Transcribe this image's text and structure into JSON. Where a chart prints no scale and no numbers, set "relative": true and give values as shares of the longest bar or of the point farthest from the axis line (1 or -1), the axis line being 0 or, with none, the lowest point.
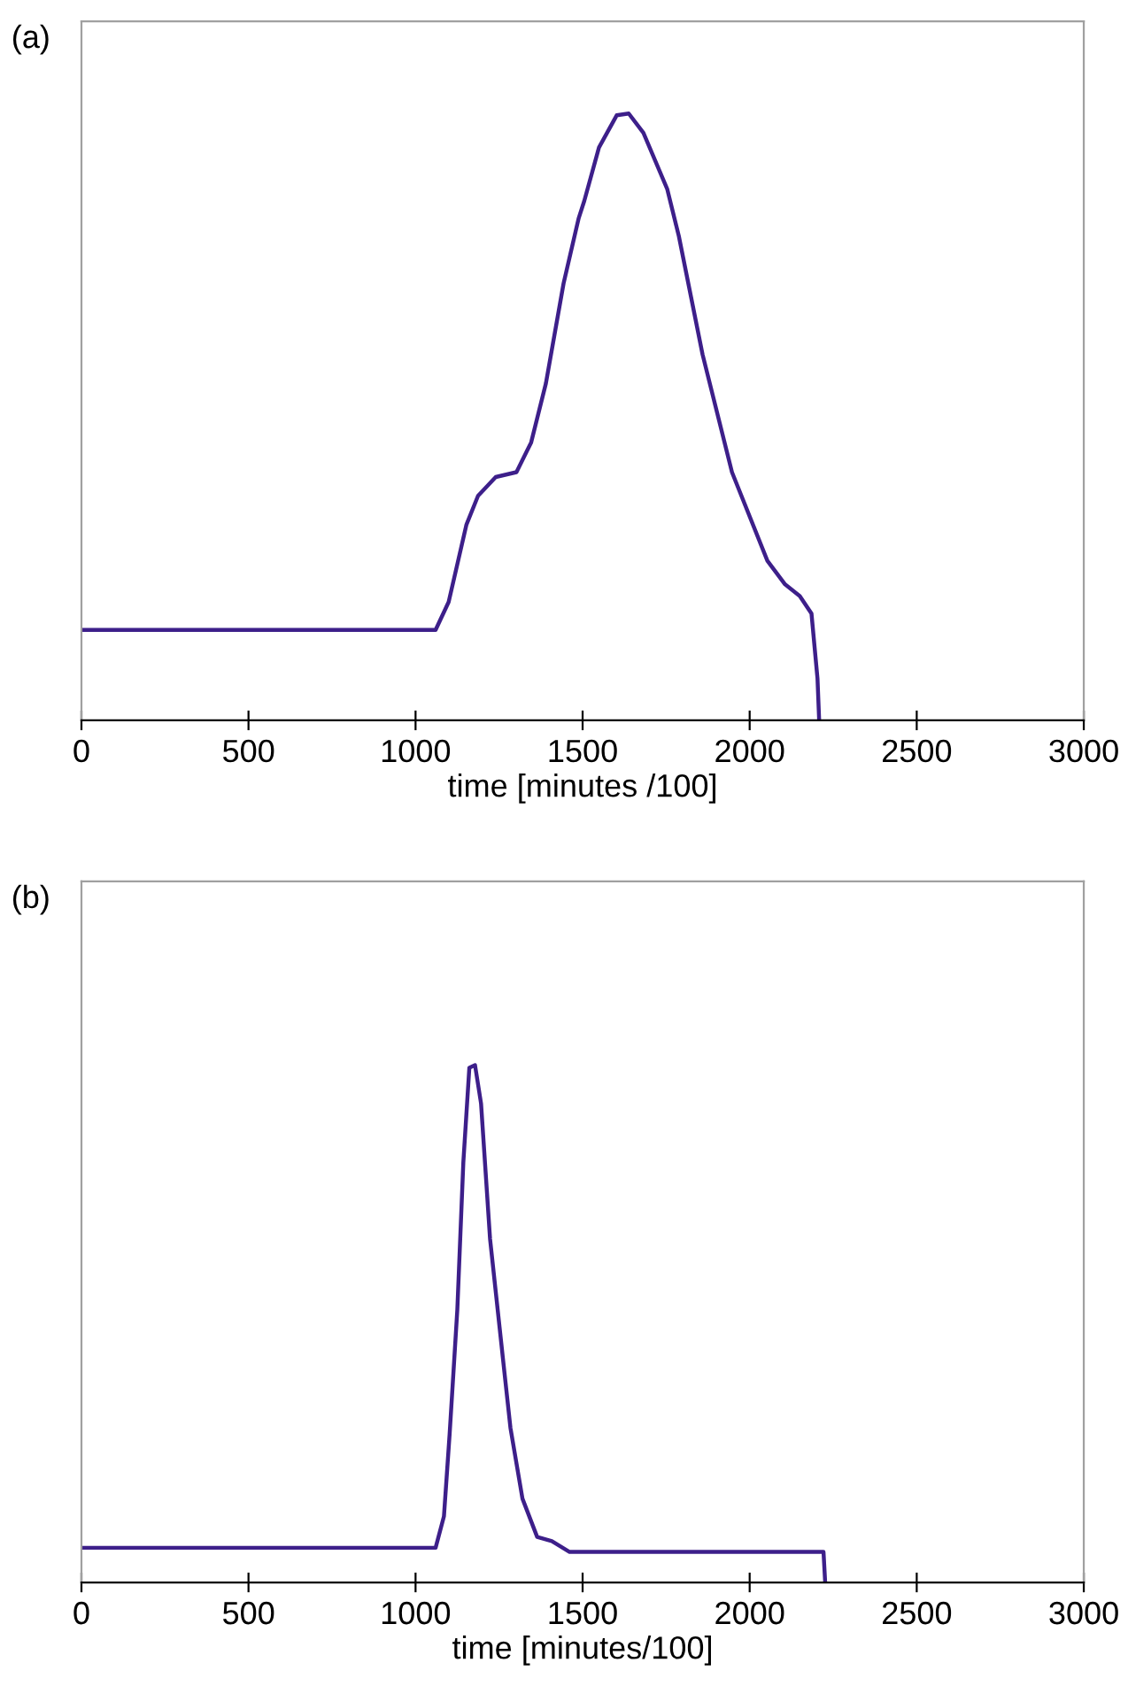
{
  "chart_data": [
    {
      "type": "line",
      "title": "(a)",
      "xlabel": "time [minutes /100]",
      "relative": true,
      "xlim": [
        0,
        3000
      ],
      "xticks": [
        0,
        500,
        1000,
        1500,
        2000,
        2500,
        3000
      ],
      "tick_labels": "x",
      "grid": false,
      "legend": false,
      "series": [
        {
          "color": "#3d1f8a",
          "x": [
            0,
            1060,
            1099,
            1152,
            1187,
            1240,
            1302,
            1346,
            1390,
            1443,
            1488,
            1505,
            1549,
            1602,
            1638,
            1682,
            1753,
            1788,
            1859,
            1947,
            2053,
            2106,
            2150,
            2185,
            2203,
            2208
          ],
          "values": [
            0.149,
            0.149,
            0.195,
            0.322,
            0.37,
            0.401,
            0.409,
            0.458,
            0.555,
            0.72,
            0.827,
            0.856,
            0.944,
            0.997,
            1.0,
            0.968,
            0.876,
            0.798,
            0.603,
            0.409,
            0.263,
            0.224,
            0.205,
            0.176,
            0.069,
            0
          ]
        }
      ]
    },
    {
      "type": "line",
      "title": "(b)",
      "xlabel": "time [minutes/100]",
      "relative": true,
      "xlim": [
        0,
        3000
      ],
      "xticks": [
        0,
        500,
        1000,
        1500,
        2000,
        2500,
        3000
      ],
      "tick_labels": "x",
      "grid": false,
      "legend": false,
      "series": [
        {
          "color": "#3d1f8a",
          "x": [
            0,
            1060,
            1085,
            1102,
            1125,
            1143,
            1161,
            1178,
            1196,
            1223,
            1261,
            1284,
            1320,
            1364,
            1408,
            1461,
            2221,
            2226
          ],
          "values": [
            0.067,
            0.067,
            0.128,
            0.287,
            0.527,
            0.812,
            0.995,
            1.0,
            0.926,
            0.664,
            0.436,
            0.299,
            0.162,
            0.088,
            0.08,
            0.059,
            0.059,
            0
          ]
        }
      ]
    }
  ]
}
